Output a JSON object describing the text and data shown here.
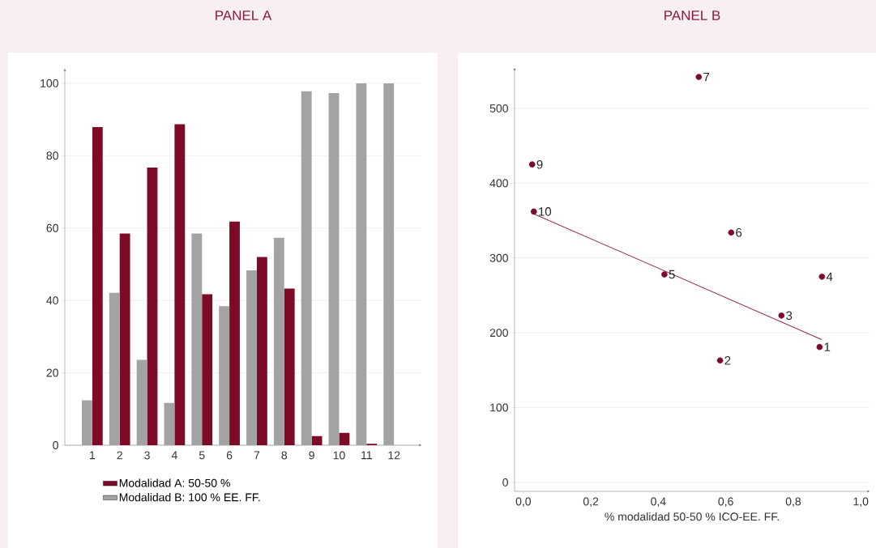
{
  "chart_data": [
    {
      "type": "bar",
      "title": "PANEL A",
      "categories": [
        "1",
        "2",
        "3",
        "4",
        "5",
        "6",
        "7",
        "8",
        "9",
        "10",
        "11",
        "12"
      ],
      "series": [
        {
          "name": "Modalidad A: 50-50 %",
          "color": "#7d0a26",
          "values": [
            87.9,
            58.5,
            76.7,
            88.7,
            41.7,
            61.8,
            52.0,
            43.3,
            2.5,
            3.4,
            0.4,
            null
          ]
        },
        {
          "name": "Modalidad B: 100 % EE. FF.",
          "color": "#a3a3a3",
          "values": [
            12.4,
            42.1,
            23.6,
            11.7,
            58.5,
            38.4,
            48.3,
            57.3,
            97.8,
            97.3,
            100,
            100
          ]
        }
      ],
      "ylim": [
        0,
        104
      ],
      "yticks": [
        0,
        20,
        40,
        60,
        80,
        100
      ],
      "grid": "y",
      "legend": "bottom"
    },
    {
      "type": "scatter",
      "title": "PANEL B",
      "xlabel": "% modalidad 50-50 % ICO-EE. FF.",
      "series": [
        {
          "type": "scatter",
          "color": "#7d0a2a",
          "marker": "circle",
          "x": [
            0.878,
            0.583,
            0.765,
            0.885,
            0.418,
            0.616,
            0.52,
            0.026,
            0.031
          ],
          "values": [
            181,
            163,
            223,
            275,
            278,
            334,
            542,
            425,
            362
          ]
        },
        {
          "type": "line",
          "color": "#9b2a44",
          "marker": "none",
          "x": [
            0.031,
            0.884
          ],
          "values": [
            359,
            191
          ]
        }
      ],
      "xlim": [
        -0.026,
        1.026
      ],
      "ylim": [
        -12,
        554
      ],
      "xticks": [
        {
          "value": 0,
          "label": "0,0"
        },
        {
          "value": 0.2,
          "label": "0,2"
        },
        {
          "value": 0.4,
          "label": "0,4"
        },
        {
          "value": 0.6,
          "label": "0,6"
        },
        {
          "value": 0.8,
          "label": "0,8"
        },
        {
          "value": 1,
          "label": "1,0"
        }
      ],
      "yticks": [
        0,
        100,
        200,
        300,
        400,
        500
      ],
      "grid": "y",
      "annotations": [
        {
          "text": "1",
          "x": 0.878,
          "y": 181
        },
        {
          "text": "2",
          "x": 0.583,
          "y": 163
        },
        {
          "text": "3",
          "x": 0.765,
          "y": 223
        },
        {
          "text": "4",
          "x": 0.885,
          "y": 275
        },
        {
          "text": "5",
          "x": 0.418,
          "y": 278
        },
        {
          "text": "6",
          "x": 0.616,
          "y": 334
        },
        {
          "text": "7",
          "x": 0.52,
          "y": 542
        },
        {
          "text": "9",
          "x": 0.026,
          "y": 425
        },
        {
          "text": "10",
          "x": 0.031,
          "y": 362
        }
      ]
    }
  ]
}
